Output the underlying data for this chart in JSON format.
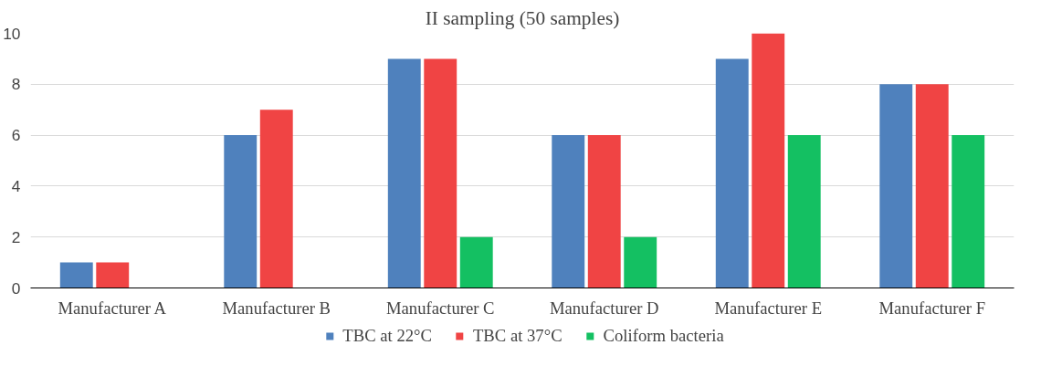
{
  "chart_data": {
    "type": "bar",
    "title": "II sampling (50 samples)",
    "categories": [
      "Manufacturer A",
      "Manufacturer B",
      "Manufacturer C",
      "Manufacturer D",
      "Manufacturer E",
      "Manufacturer F"
    ],
    "series": [
      {
        "name": "TBC at 22°C",
        "color": "#4f81bd",
        "values": [
          1,
          6,
          9,
          6,
          9,
          8
        ]
      },
      {
        "name": "TBC at 37°C",
        "color": "#f04444",
        "values": [
          1,
          7,
          9,
          6,
          10,
          8
        ]
      },
      {
        "name": "Coliform bacteria",
        "color": "#14c062",
        "values": [
          0,
          0,
          2,
          2,
          6,
          6
        ]
      }
    ],
    "ylim": [
      0,
      10
    ],
    "yticks": [
      0,
      2,
      4,
      6,
      8,
      10
    ],
    "grid": "y",
    "legend": "bottom"
  }
}
